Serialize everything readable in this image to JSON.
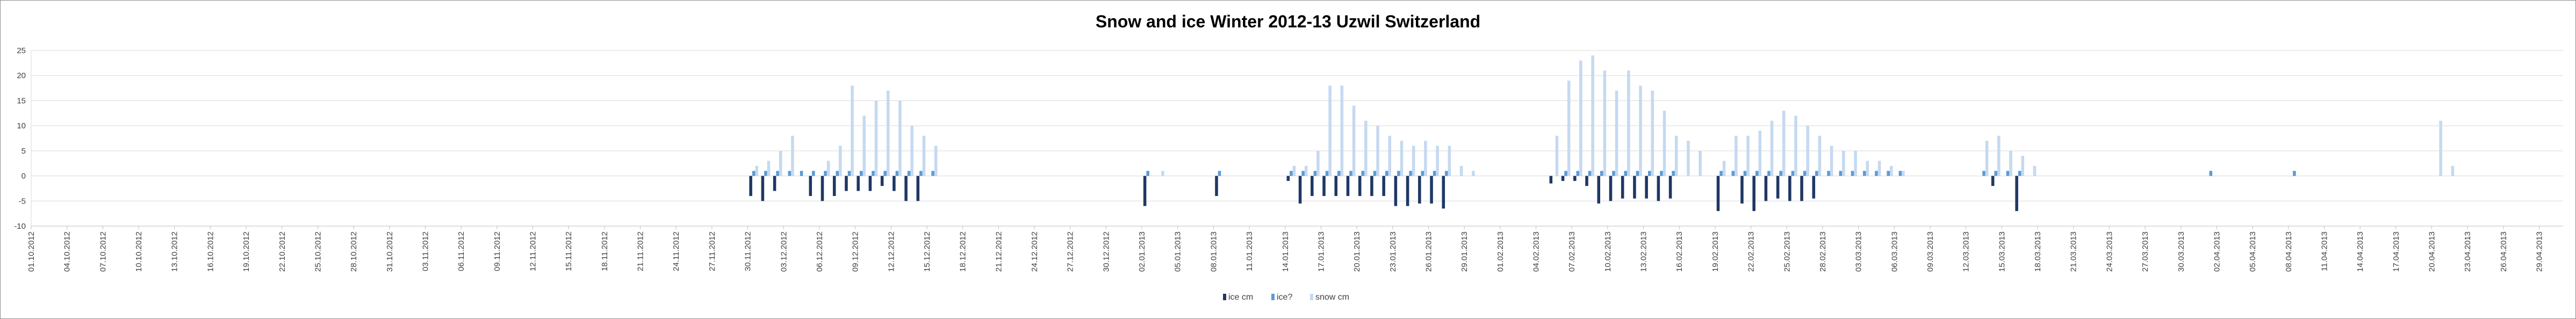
{
  "chart_data": {
    "type": "bar",
    "title": "Snow and ice Winter 2012-13 Uzwil Switzerland",
    "xlabel": "",
    "ylabel": "",
    "ylim": [
      -10,
      25
    ],
    "y_ticks": [
      "-10",
      "-5",
      "0",
      "5",
      "10",
      "15",
      "20",
      "25"
    ],
    "grid": true,
    "legend_position": "bottom",
    "start_date": "2012-10-01",
    "end_date": "2013-04-30",
    "x_tick_labels": [
      "01.10.2012",
      "04.10.2012",
      "07.10.2012",
      "10.10.2012",
      "13.10.2012",
      "16.10.2012",
      "19.10.2012",
      "22.10.2012",
      "25.10.2012",
      "28.10.2012",
      "31.10.2012",
      "03.11.2012",
      "06.11.2012",
      "09.11.2012",
      "12.11.2012",
      "15.11.2012",
      "18.11.2012",
      "21.11.2012",
      "24.11.2012",
      "27.11.2012",
      "30.11.2012",
      "03.12.2012",
      "06.12.2012",
      "09.12.2012",
      "12.12.2012",
      "15.12.2012",
      "18.12.2012",
      "21.12.2012",
      "24.12.2012",
      "27.12.2012",
      "30.12.2012",
      "02.01.2013",
      "05.01.2013",
      "08.01.2013",
      "11.01.2013",
      "14.01.2013",
      "17.01.2013",
      "20.01.2013",
      "23.01.2013",
      "26.01.2013",
      "29.01.2013",
      "01.02.2013",
      "04.02.2013",
      "07.02.2013",
      "10.02.2013",
      "13.02.2013",
      "16.02.2013",
      "19.02.2013",
      "22.02.2013",
      "25.02.2013",
      "28.02.2013",
      "03.03.2013",
      "06.03.2013",
      "09.03.2013",
      "12.03.2013",
      "15.03.2013",
      "18.03.2013",
      "21.03.2013",
      "24.03.2013",
      "27.03.2013",
      "30.03.2013",
      "02.04.2013",
      "05.04.2013",
      "08.04.2013",
      "11.04.2013",
      "14.04.2013",
      "17.04.2013",
      "20.04.2013",
      "23.04.2013",
      "26.04.2013",
      "29.04.2013"
    ],
    "series": [
      {
        "name": "ice cm",
        "color": "#1f3864",
        "points": [
          [
            "2012-11-30",
            -4
          ],
          [
            "2012-12-01",
            -5
          ],
          [
            "2012-12-02",
            -3
          ],
          [
            "2012-12-05",
            -4
          ],
          [
            "2012-12-06",
            -5
          ],
          [
            "2012-12-07",
            -4
          ],
          [
            "2012-12-08",
            -3
          ],
          [
            "2012-12-09",
            -3
          ],
          [
            "2012-12-10",
            -3
          ],
          [
            "2012-12-11",
            -2
          ],
          [
            "2012-12-12",
            -3
          ],
          [
            "2012-12-13",
            -5
          ],
          [
            "2012-12-14",
            -5
          ],
          [
            "2013-01-02",
            -6
          ],
          [
            "2013-01-08",
            -4
          ],
          [
            "2013-01-14",
            -1
          ],
          [
            "2013-01-15",
            -5.5
          ],
          [
            "2013-01-16",
            -4
          ],
          [
            "2013-01-17",
            -4
          ],
          [
            "2013-01-18",
            -4
          ],
          [
            "2013-01-19",
            -4
          ],
          [
            "2013-01-20",
            -4
          ],
          [
            "2013-01-21",
            -4
          ],
          [
            "2013-01-22",
            -4
          ],
          [
            "2013-01-23",
            -6
          ],
          [
            "2013-01-24",
            -6
          ],
          [
            "2013-01-25",
            -5.5
          ],
          [
            "2013-01-26",
            -5.5
          ],
          [
            "2013-01-27",
            -6.5
          ],
          [
            "2013-02-05",
            -1.5
          ],
          [
            "2013-02-06",
            -1
          ],
          [
            "2013-02-07",
            -1
          ],
          [
            "2013-02-08",
            -2
          ],
          [
            "2013-02-09",
            -5.5
          ],
          [
            "2013-02-10",
            -5
          ],
          [
            "2013-02-11",
            -4.5
          ],
          [
            "2013-02-12",
            -4.5
          ],
          [
            "2013-02-13",
            -4.5
          ],
          [
            "2013-02-14",
            -5
          ],
          [
            "2013-02-15",
            -4.5
          ],
          [
            "2013-02-19",
            -7
          ],
          [
            "2013-02-21",
            -5.5
          ],
          [
            "2013-02-22",
            -7
          ],
          [
            "2013-02-23",
            -5
          ],
          [
            "2013-02-24",
            -4.5
          ],
          [
            "2013-02-25",
            -5
          ],
          [
            "2013-02-26",
            -5
          ],
          [
            "2013-02-27",
            -4.5
          ],
          [
            "2013-03-14",
            -2
          ],
          [
            "2013-03-16",
            -7
          ]
        ]
      },
      {
        "name": "ice?",
        "color": "#5b9bd5",
        "points": [
          [
            "2012-11-30",
            1
          ],
          [
            "2012-12-01",
            1
          ],
          [
            "2012-12-02",
            1
          ],
          [
            "2012-12-03",
            1
          ],
          [
            "2012-12-04",
            1
          ],
          [
            "2012-12-05",
            1
          ],
          [
            "2012-12-06",
            1
          ],
          [
            "2012-12-07",
            1
          ],
          [
            "2012-12-08",
            1
          ],
          [
            "2012-12-09",
            1
          ],
          [
            "2012-12-10",
            1
          ],
          [
            "2012-12-11",
            1
          ],
          [
            "2012-12-12",
            1
          ],
          [
            "2012-12-13",
            1
          ],
          [
            "2012-12-14",
            1
          ],
          [
            "2012-12-15",
            1
          ],
          [
            "2013-01-02",
            1
          ],
          [
            "2013-01-08",
            1
          ],
          [
            "2013-01-14",
            1
          ],
          [
            "2013-01-15",
            1
          ],
          [
            "2013-01-16",
            1
          ],
          [
            "2013-01-17",
            1
          ],
          [
            "2013-01-18",
            1
          ],
          [
            "2013-01-19",
            1
          ],
          [
            "2013-01-20",
            1
          ],
          [
            "2013-01-21",
            1
          ],
          [
            "2013-01-22",
            1
          ],
          [
            "2013-01-23",
            1
          ],
          [
            "2013-01-24",
            1
          ],
          [
            "2013-01-25",
            1
          ],
          [
            "2013-01-26",
            1
          ],
          [
            "2013-01-27",
            1
          ],
          [
            "2013-02-06",
            1
          ],
          [
            "2013-02-07",
            1
          ],
          [
            "2013-02-08",
            1
          ],
          [
            "2013-02-09",
            1
          ],
          [
            "2013-02-10",
            1
          ],
          [
            "2013-02-11",
            1
          ],
          [
            "2013-02-12",
            1
          ],
          [
            "2013-02-13",
            1
          ],
          [
            "2013-02-14",
            1
          ],
          [
            "2013-02-15",
            1
          ],
          [
            "2013-02-19",
            1
          ],
          [
            "2013-02-20",
            1
          ],
          [
            "2013-02-21",
            1
          ],
          [
            "2013-02-22",
            1
          ],
          [
            "2013-02-23",
            1
          ],
          [
            "2013-02-24",
            1
          ],
          [
            "2013-02-25",
            1
          ],
          [
            "2013-02-26",
            1
          ],
          [
            "2013-02-27",
            1
          ],
          [
            "2013-02-28",
            1
          ],
          [
            "2013-03-01",
            1
          ],
          [
            "2013-03-02",
            1
          ],
          [
            "2013-03-03",
            1
          ],
          [
            "2013-03-04",
            1
          ],
          [
            "2013-03-05",
            1
          ],
          [
            "2013-03-06",
            1
          ],
          [
            "2013-03-13",
            1
          ],
          [
            "2013-03-14",
            1
          ],
          [
            "2013-03-15",
            1
          ],
          [
            "2013-03-16",
            1
          ],
          [
            "2013-04-01",
            1
          ],
          [
            "2013-04-08",
            1
          ]
        ]
      },
      {
        "name": "snow cm",
        "color": "#c5d9f1",
        "points": [
          [
            "2012-11-30",
            2
          ],
          [
            "2012-12-01",
            3
          ],
          [
            "2012-12-02",
            5
          ],
          [
            "2012-12-03",
            8
          ],
          [
            "2012-12-06",
            3
          ],
          [
            "2012-12-07",
            6
          ],
          [
            "2012-12-08",
            18
          ],
          [
            "2012-12-09",
            12
          ],
          [
            "2012-12-10",
            15
          ],
          [
            "2012-12-11",
            17
          ],
          [
            "2012-12-12",
            15
          ],
          [
            "2012-12-13",
            10
          ],
          [
            "2012-12-14",
            8
          ],
          [
            "2012-12-15",
            6
          ],
          [
            "2013-01-03",
            1
          ],
          [
            "2013-01-14",
            2
          ],
          [
            "2013-01-15",
            2
          ],
          [
            "2013-01-16",
            5
          ],
          [
            "2013-01-17",
            18
          ],
          [
            "2013-01-18",
            18
          ],
          [
            "2013-01-19",
            14
          ],
          [
            "2013-01-20",
            11
          ],
          [
            "2013-01-21",
            10
          ],
          [
            "2013-01-22",
            8
          ],
          [
            "2013-01-23",
            7
          ],
          [
            "2013-01-24",
            6
          ],
          [
            "2013-01-25",
            7
          ],
          [
            "2013-01-26",
            6
          ],
          [
            "2013-01-27",
            6
          ],
          [
            "2013-01-28",
            2
          ],
          [
            "2013-01-29",
            1
          ],
          [
            "2013-02-05",
            8
          ],
          [
            "2013-02-06",
            19
          ],
          [
            "2013-02-07",
            23
          ],
          [
            "2013-02-08",
            24
          ],
          [
            "2013-02-09",
            21
          ],
          [
            "2013-02-10",
            17
          ],
          [
            "2013-02-11",
            21
          ],
          [
            "2013-02-12",
            18
          ],
          [
            "2013-02-13",
            17
          ],
          [
            "2013-02-14",
            13
          ],
          [
            "2013-02-15",
            8
          ],
          [
            "2013-02-16",
            7
          ],
          [
            "2013-02-17",
            5
          ],
          [
            "2013-02-19",
            3
          ],
          [
            "2013-02-20",
            8
          ],
          [
            "2013-02-21",
            8
          ],
          [
            "2013-02-22",
            9
          ],
          [
            "2013-02-23",
            11
          ],
          [
            "2013-02-24",
            13
          ],
          [
            "2013-02-25",
            12
          ],
          [
            "2013-02-26",
            10
          ],
          [
            "2013-02-27",
            8
          ],
          [
            "2013-02-28",
            6
          ],
          [
            "2013-03-01",
            5
          ],
          [
            "2013-03-02",
            5
          ],
          [
            "2013-03-03",
            3
          ],
          [
            "2013-03-04",
            3
          ],
          [
            "2013-03-05",
            2
          ],
          [
            "2013-03-06",
            1
          ],
          [
            "2013-03-13",
            7
          ],
          [
            "2013-03-14",
            8
          ],
          [
            "2013-03-15",
            5
          ],
          [
            "2013-03-16",
            4
          ],
          [
            "2013-03-17",
            2
          ],
          [
            "2013-04-20",
            11
          ],
          [
            "2013-04-21",
            2
          ]
        ]
      }
    ]
  }
}
